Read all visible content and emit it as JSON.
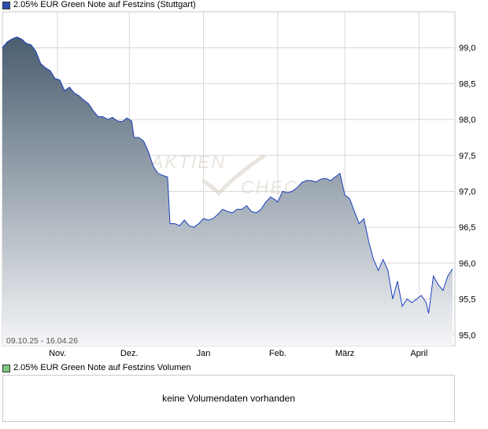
{
  "chart_data": {
    "type": "area",
    "title": "2.05% EUR Green Note auf Festzins (Stuttgart)",
    "range_label": "09.10.25 - 16.04.26",
    "watermark": [
      "AKTIEN",
      "CHECK"
    ],
    "x_tick_labels": [
      "Nov.",
      "Dez.",
      "Jan",
      "Feb.",
      "März",
      "April"
    ],
    "x_tick_dates": [
      "2025-11-01",
      "2025-12-01",
      "2026-01-01",
      "2026-02-01",
      "2026-03-01",
      "2026-04-01"
    ],
    "x_range": [
      "2025-10-09",
      "2026-04-16"
    ],
    "y_ticks": [
      95.0,
      95.5,
      96.0,
      96.5,
      97.0,
      97.5,
      98.0,
      98.5,
      99.0
    ],
    "y_tick_labels": [
      "95,0",
      "95,5",
      "96,0",
      "96,5",
      "97,0",
      "97,5",
      "98,0",
      "98,5",
      "99,0"
    ],
    "ylim": [
      94.85,
      99.5
    ],
    "grid": true,
    "colors": {
      "line": "#1a3fbf",
      "fill_top": "#4a5d70",
      "fill_bottom": "#f5f6f8",
      "grid": "#d8d8d8"
    },
    "series": [
      {
        "name": "2.05% EUR Green Note auf Festzins",
        "points": [
          [
            "2025-10-09",
            99.0
          ],
          [
            "2025-10-11",
            99.08
          ],
          [
            "2025-10-13",
            99.12
          ],
          [
            "2025-10-15",
            99.15
          ],
          [
            "2025-10-17",
            99.12
          ],
          [
            "2025-10-19",
            99.06
          ],
          [
            "2025-10-21",
            99.04
          ],
          [
            "2025-10-23",
            98.95
          ],
          [
            "2025-10-25",
            98.78
          ],
          [
            "2025-10-27",
            98.72
          ],
          [
            "2025-10-29",
            98.68
          ],
          [
            "2025-10-31",
            98.57
          ],
          [
            "2025-11-02",
            98.55
          ],
          [
            "2025-11-04",
            98.4
          ],
          [
            "2025-11-06",
            98.45
          ],
          [
            "2025-11-08",
            98.37
          ],
          [
            "2025-11-10",
            98.33
          ],
          [
            "2025-11-12",
            98.27
          ],
          [
            "2025-11-14",
            98.22
          ],
          [
            "2025-11-16",
            98.12
          ],
          [
            "2025-11-18",
            98.04
          ],
          [
            "2025-11-20",
            98.04
          ],
          [
            "2025-11-22",
            98.0
          ],
          [
            "2025-11-24",
            98.03
          ],
          [
            "2025-11-26",
            97.98
          ],
          [
            "2025-11-28",
            97.97
          ],
          [
            "2025-11-30",
            98.02
          ],
          [
            "2025-12-02",
            97.98
          ],
          [
            "2025-12-03",
            97.75
          ],
          [
            "2025-12-05",
            97.75
          ],
          [
            "2025-12-07",
            97.7
          ],
          [
            "2025-12-09",
            97.55
          ],
          [
            "2025-12-11",
            97.35
          ],
          [
            "2025-12-13",
            97.25
          ],
          [
            "2025-12-15",
            97.22
          ],
          [
            "2025-12-17",
            97.2
          ],
          [
            "2025-12-18",
            96.55
          ],
          [
            "2025-12-20",
            96.55
          ],
          [
            "2025-12-22",
            96.52
          ],
          [
            "2025-12-24",
            96.6
          ],
          [
            "2025-12-26",
            96.52
          ],
          [
            "2025-12-28",
            96.5
          ],
          [
            "2025-12-30",
            96.55
          ],
          [
            "2026-01-01",
            96.62
          ],
          [
            "2026-01-03",
            96.6
          ],
          [
            "2026-01-05",
            96.62
          ],
          [
            "2026-01-07",
            96.68
          ],
          [
            "2026-01-09",
            96.75
          ],
          [
            "2026-01-11",
            96.72
          ],
          [
            "2026-01-13",
            96.7
          ],
          [
            "2026-01-15",
            96.75
          ],
          [
            "2026-01-17",
            96.75
          ],
          [
            "2026-01-19",
            96.8
          ],
          [
            "2026-01-21",
            96.72
          ],
          [
            "2026-01-23",
            96.7
          ],
          [
            "2026-01-25",
            96.75
          ],
          [
            "2026-01-27",
            96.85
          ],
          [
            "2026-01-29",
            96.92
          ],
          [
            "2026-01-31",
            96.88
          ],
          [
            "2026-02-01",
            96.85
          ],
          [
            "2026-02-03",
            97.0
          ],
          [
            "2026-02-05",
            96.98
          ],
          [
            "2026-02-07",
            97.0
          ],
          [
            "2026-02-09",
            97.05
          ],
          [
            "2026-02-11",
            97.12
          ],
          [
            "2026-02-13",
            97.15
          ],
          [
            "2026-02-15",
            97.15
          ],
          [
            "2026-02-17",
            97.13
          ],
          [
            "2026-02-19",
            97.17
          ],
          [
            "2026-02-21",
            97.18
          ],
          [
            "2026-02-23",
            97.15
          ],
          [
            "2026-02-25",
            97.2
          ],
          [
            "2026-02-27",
            97.25
          ],
          [
            "2026-03-01",
            96.95
          ],
          [
            "2026-03-03",
            96.9
          ],
          [
            "2026-03-05",
            96.72
          ],
          [
            "2026-03-07",
            96.55
          ],
          [
            "2026-03-09",
            96.62
          ],
          [
            "2026-03-11",
            96.3
          ],
          [
            "2026-03-13",
            96.05
          ],
          [
            "2026-03-15",
            95.9
          ],
          [
            "2026-03-17",
            96.05
          ],
          [
            "2026-03-19",
            95.9
          ],
          [
            "2026-03-21",
            95.5
          ],
          [
            "2026-03-23",
            95.75
          ],
          [
            "2026-03-25",
            95.4
          ],
          [
            "2026-03-27",
            95.5
          ],
          [
            "2026-03-29",
            95.45
          ],
          [
            "2026-03-31",
            95.5
          ],
          [
            "2026-04-02",
            95.55
          ],
          [
            "2026-04-04",
            95.45
          ],
          [
            "2026-04-05",
            95.3
          ],
          [
            "2026-04-07",
            95.82
          ],
          [
            "2026-04-09",
            95.7
          ],
          [
            "2026-04-11",
            95.62
          ],
          [
            "2026-04-13",
            95.82
          ],
          [
            "2026-04-15",
            95.92
          ]
        ]
      }
    ]
  },
  "volume": {
    "legend": "2.05% EUR Green Note auf Festzins Volumen",
    "empty_message": "keine Volumendaten vorhanden",
    "swatch_color": "#7fc87f"
  }
}
